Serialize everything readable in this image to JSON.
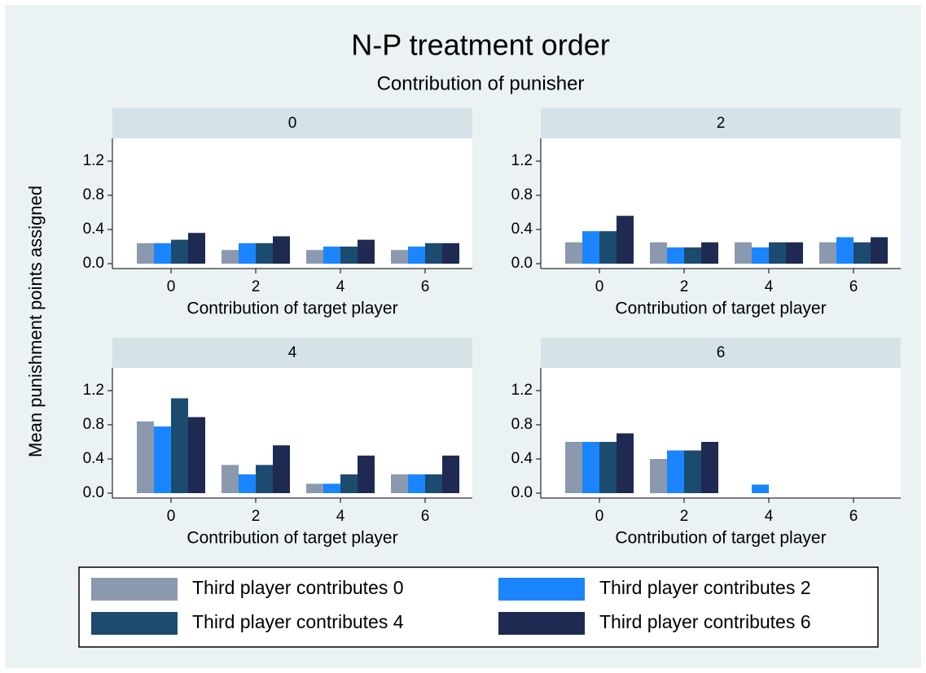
{
  "title": "N-P treatment order",
  "chart_data": {
    "type": "bar",
    "subtitle": "Contribution of punisher",
    "facets": [
      "0",
      "2",
      "4",
      "6"
    ],
    "categories": [
      "0",
      "2",
      "4",
      "6"
    ],
    "xlabel": "Contribution of target player",
    "ylabel": "Mean punishment points assigned",
    "ylim": [
      0,
      1.2
    ],
    "yticks": [
      {
        "value": 0,
        "label": "0.0"
      },
      0.4,
      0.8,
      1.2
    ],
    "series": [
      {
        "name": "Third player contributes 0",
        "color": "#8a99ad",
        "values": [
          [
            0.24,
            0.16,
            0.16,
            0.16
          ],
          [
            0.25,
            0.25,
            0.25,
            0.25
          ],
          [
            0.84,
            0.33,
            0.11,
            0.22
          ],
          [
            0.6,
            0.4,
            0,
            0
          ]
        ]
      },
      {
        "name": "Third player contributes 2",
        "color": "#1a85ff",
        "values": [
          [
            0.24,
            0.24,
            0.2,
            0.2
          ],
          [
            0.38,
            0.19,
            0.19,
            0.31
          ],
          [
            0.78,
            0.22,
            0.11,
            0.22
          ],
          [
            0.6,
            0.5,
            0.1,
            0
          ]
        ]
      },
      {
        "name": "Third player contributes 4",
        "color": "#1c4b70",
        "values": [
          [
            0.28,
            0.24,
            0.2,
            0.24
          ],
          [
            0.38,
            0.19,
            0.25,
            0.25
          ],
          [
            1.11,
            0.33,
            0.22,
            0.22
          ],
          [
            0.6,
            0.5,
            0,
            0
          ]
        ]
      },
      {
        "name": "Third player contributes 6",
        "color": "#1f2a52",
        "values": [
          [
            0.36,
            0.32,
            0.28,
            0.24
          ],
          [
            0.56,
            0.25,
            0.25,
            0.31
          ],
          [
            0.89,
            0.56,
            0.44,
            0.44
          ],
          [
            0.7,
            0.6,
            0,
            0
          ]
        ]
      }
    ],
    "legend": "bottom"
  }
}
